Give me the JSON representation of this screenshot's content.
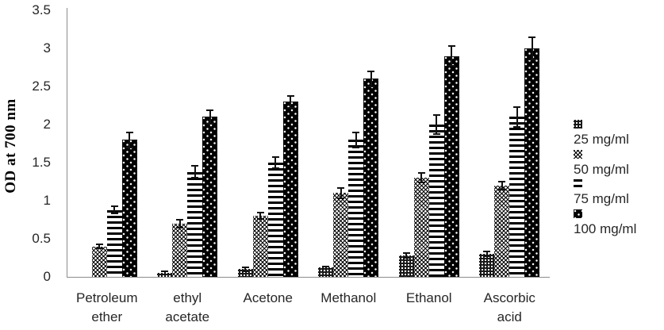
{
  "chart_data": {
    "type": "bar",
    "title": "",
    "xlabel": "",
    "ylabel": "OD at 700 nm",
    "ylim": [
      0,
      3.5
    ],
    "ytick_labels": [
      "0",
      "0.5",
      "1",
      "1.5",
      "2",
      "2.5",
      "3",
      "3.5"
    ],
    "grid": false,
    "legend_position": "right",
    "error_bars": true,
    "categories": [
      "Petroleum ether",
      "ethyl acetate",
      "Acetone",
      "Methanol",
      "Ethanol",
      "Ascorbic acid"
    ],
    "category_label_lines": [
      [
        "Petroleum",
        "ether"
      ],
      [
        "ethyl",
        "acetate"
      ],
      [
        "Acetone"
      ],
      [
        "Methanol"
      ],
      [
        "Ethanol"
      ],
      [
        "Ascorbic",
        "acid"
      ]
    ],
    "series": [
      {
        "name": "25 mg/ml",
        "pattern": "open-circles",
        "values": [
          0,
          0.05,
          0.1,
          0.12,
          0.28,
          0.3
        ],
        "errors": [
          0,
          0.02,
          0.03,
          0.02,
          0.03,
          0.03
        ]
      },
      {
        "name": "50 mg/ml",
        "pattern": "diagonal-crosshatch",
        "values": [
          0.4,
          0.7,
          0.8,
          1.1,
          1.3,
          1.2
        ],
        "errors": [
          0.03,
          0.05,
          0.04,
          0.07,
          0.06,
          0.05
        ]
      },
      {
        "name": "75 mg/ml",
        "pattern": "horizontal-stripes",
        "values": [
          0.88,
          1.38,
          1.5,
          1.8,
          2.0,
          2.1
        ],
        "errors": [
          0.05,
          0.08,
          0.07,
          0.1,
          0.12,
          0.13
        ]
      },
      {
        "name": "100 mg/ml",
        "pattern": "white-dots-on-black",
        "values": [
          1.8,
          2.1,
          2.3,
          2.6,
          2.9,
          3.0
        ],
        "errors": [
          0.1,
          0.09,
          0.08,
          0.1,
          0.13,
          0.15
        ]
      }
    ],
    "colors": {
      "bar_ink": "#000000",
      "axis_line": "#8c8c8c",
      "text": "#262626"
    }
  }
}
